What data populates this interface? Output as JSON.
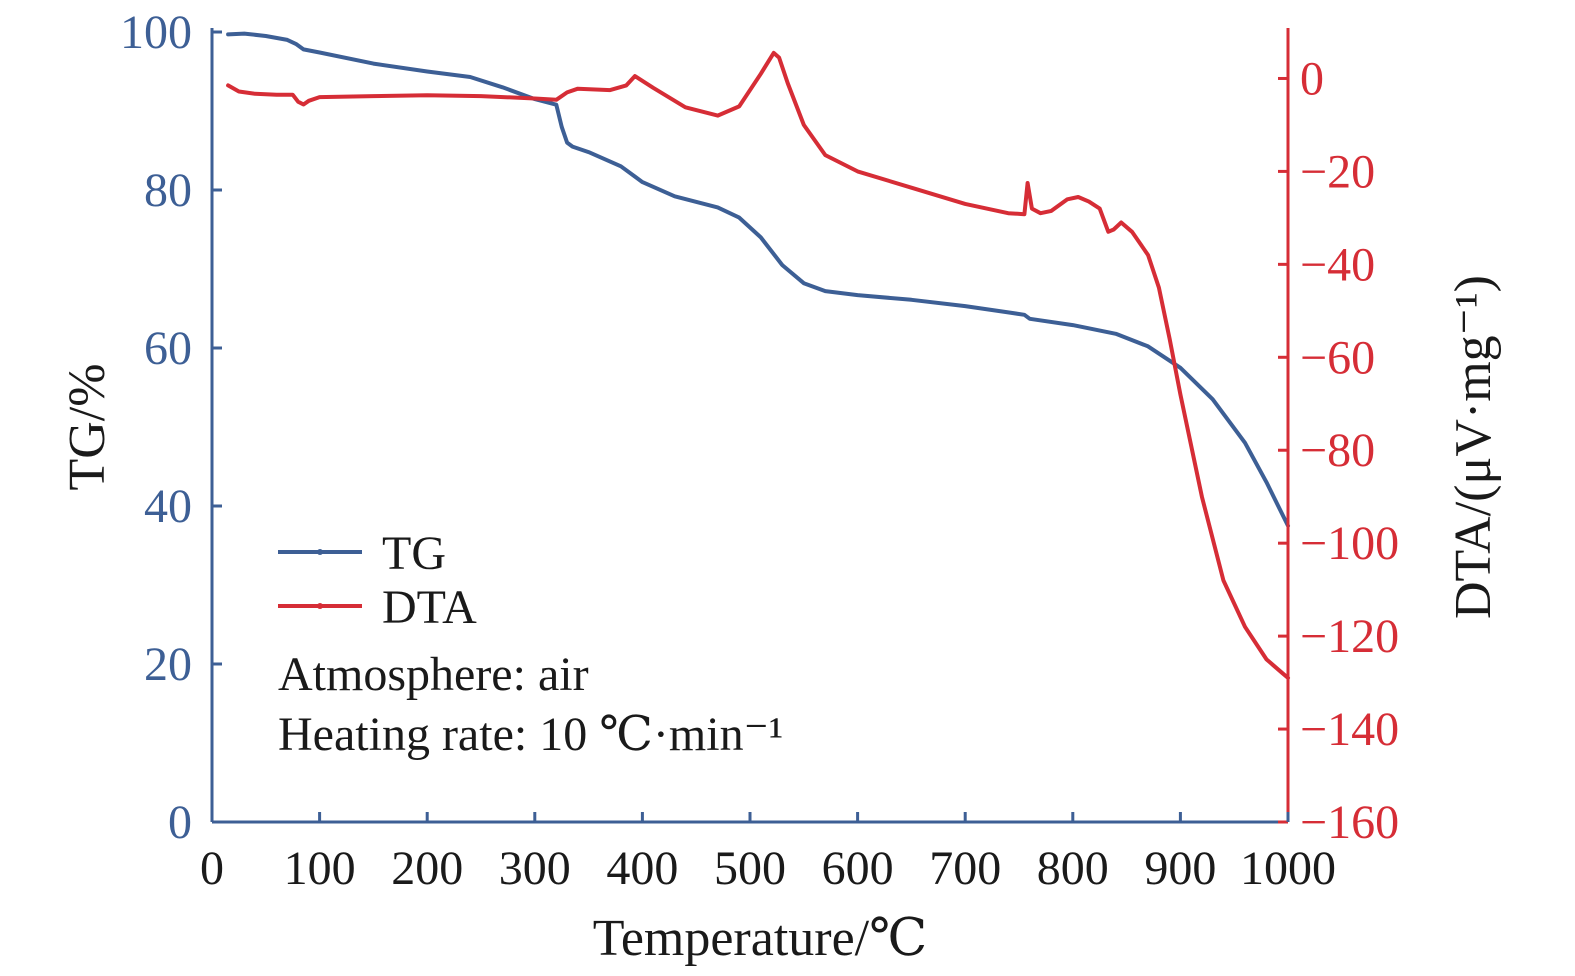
{
  "chart_data": {
    "type": "line",
    "xlabel": "Temperature/℃",
    "ylabel_left": "TG/%",
    "ylabel_right": "DTA/(μV·mg⁻¹)",
    "xlim": [
      0,
      1000
    ],
    "ylim_left": [
      0,
      100
    ],
    "ylim_right": [
      -160,
      10
    ],
    "xticks": [
      0,
      100,
      200,
      300,
      400,
      500,
      600,
      700,
      800,
      900,
      1000
    ],
    "yticks_left": [
      0,
      20,
      40,
      60,
      80,
      100
    ],
    "yticks_right": [
      -160,
      -140,
      -120,
      -100,
      -80,
      -60,
      -40,
      -20,
      0
    ],
    "grid": false,
    "legend_position": "lower-left",
    "colors": {
      "TG": "#3d5f95",
      "DTA": "#d62d36"
    },
    "annotations": [
      "Atmosphere: air",
      "Heating rate: 10 ℃·min⁻¹"
    ],
    "series": [
      {
        "name": "TG",
        "axis": "left",
        "x": [
          15,
          30,
          50,
          70,
          78,
          85,
          100,
          150,
          200,
          240,
          270,
          300,
          320,
          325,
          330,
          335,
          350,
          380,
          400,
          430,
          470,
          490,
          510,
          530,
          550,
          570,
          600,
          650,
          700,
          740,
          755,
          760,
          800,
          840,
          870,
          900,
          930,
          960,
          980,
          1000
        ],
        "values": [
          99.7,
          99.8,
          99.5,
          99.0,
          98.5,
          97.8,
          97.4,
          96.0,
          95.0,
          94.3,
          93.0,
          91.5,
          90.8,
          88.0,
          86.0,
          85.5,
          84.8,
          83.0,
          81.0,
          79.2,
          77.8,
          76.5,
          74.0,
          70.5,
          68.2,
          67.2,
          66.7,
          66.1,
          65.3,
          64.5,
          64.2,
          63.7,
          62.9,
          61.8,
          60.2,
          57.5,
          53.5,
          48.0,
          43.0,
          37.5
        ]
      },
      {
        "name": "DTA",
        "axis": "right",
        "x": [
          15,
          25,
          40,
          60,
          75,
          80,
          85,
          90,
          100,
          150,
          200,
          250,
          300,
          320,
          330,
          340,
          370,
          385,
          393,
          410,
          440,
          470,
          490,
          510,
          522,
          527,
          535,
          550,
          570,
          600,
          650,
          700,
          740,
          755,
          758,
          762,
          770,
          780,
          795,
          805,
          815,
          825,
          833,
          838,
          845,
          855,
          870,
          880,
          890,
          900,
          920,
          940,
          960,
          980,
          995,
          1000
        ],
        "values": [
          -1.5,
          -2.8,
          -3.3,
          -3.5,
          -3.5,
          -5.0,
          -5.6,
          -4.8,
          -4.0,
          -3.8,
          -3.6,
          -3.8,
          -4.3,
          -4.6,
          -3.0,
          -2.2,
          -2.5,
          -1.5,
          0.5,
          -2.0,
          -6.2,
          -8.0,
          -6.0,
          1.0,
          5.5,
          4.5,
          -1.0,
          -10.0,
          -16.5,
          -20.0,
          -23.5,
          -27.0,
          -29.0,
          -29.2,
          -22.5,
          -28.0,
          -29.0,
          -28.5,
          -26.0,
          -25.5,
          -26.5,
          -28.0,
          -33.0,
          -32.5,
          -31.0,
          -33.0,
          -38.0,
          -45.0,
          -56.0,
          -68.0,
          -90.0,
          -108.0,
          -118.0,
          -125.0,
          -128.0,
          -129.0
        ]
      }
    ]
  }
}
